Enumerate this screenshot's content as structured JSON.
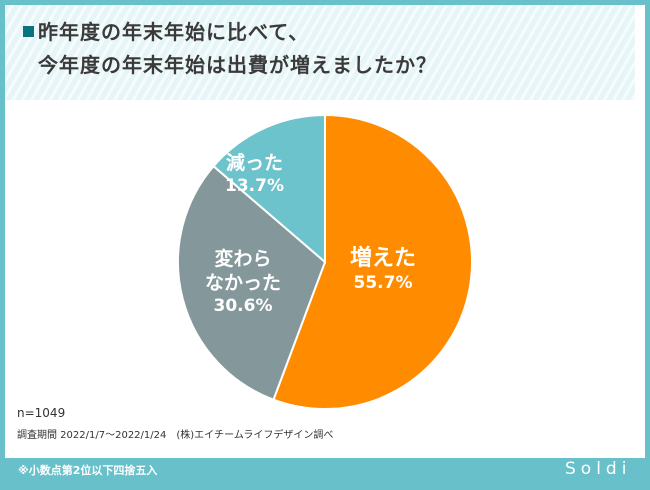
{
  "title": {
    "line1": "昨年度の年末年始に比べて、",
    "line2": "今年度の年末年始は出費が増えましたか？"
  },
  "chart_data": {
    "type": "pie",
    "title": "昨年度の年末年始に比べて、今年度の年末年始は出費が増えましたか？",
    "slices": [
      {
        "label": "増えた",
        "value": 55.7,
        "display": "55.7%",
        "color": "#ff8c00"
      },
      {
        "label": "変わらなかった",
        "value": 30.6,
        "display": "30.6%",
        "color": "#84989b",
        "label_lines": [
          "変わら",
          "なかった"
        ]
      },
      {
        "label": "減った",
        "value": 13.7,
        "display": "13.7%",
        "color": "#6cc3cc"
      }
    ]
  },
  "footer": {
    "n": "n=1049",
    "period": "調査期間 2022/1/7〜2022/1/24　(株)エイチームライフデザイン調べ",
    "note": "※小数点第2位以下四捨五入",
    "logo": "Soldi"
  }
}
